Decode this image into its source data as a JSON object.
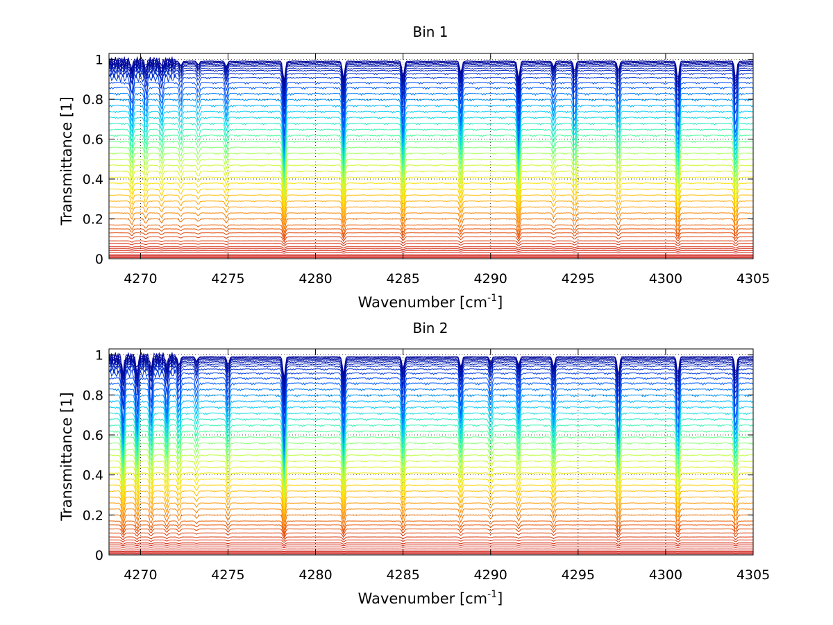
{
  "chart_data": [
    {
      "type": "line",
      "title": "Bin 1",
      "xlabel_main": "Wavenumber [cm",
      "xlabel_sup": "-1",
      "xlabel_end": "]",
      "ylabel": "Transmittance [1]",
      "xlim": [
        4268.2,
        4305
      ],
      "ylim": [
        0,
        1.03
      ],
      "xticks": [
        4270,
        4275,
        4280,
        4285,
        4290,
        4295,
        4300,
        4305
      ],
      "yticks": [
        0,
        0.2,
        0.4,
        0.6,
        0.8,
        1
      ],
      "xtick_labels": [
        "4270",
        "4275",
        "4280",
        "4285",
        "4290",
        "4295",
        "4300",
        "4305"
      ],
      "ytick_labels": [
        "0",
        "0.2",
        "0.4",
        "0.6",
        "0.8",
        "1"
      ],
      "grid": true,
      "series_count": 48,
      "series_baseline_levels": [
        0.005,
        0.01,
        0.015,
        0.02,
        0.03,
        0.04,
        0.05,
        0.06,
        0.075,
        0.09,
        0.11,
        0.13,
        0.15,
        0.17,
        0.2,
        0.23,
        0.26,
        0.29,
        0.32,
        0.35,
        0.38,
        0.41,
        0.44,
        0.47,
        0.5,
        0.53,
        0.56,
        0.59,
        0.62,
        0.65,
        0.68,
        0.71,
        0.74,
        0.77,
        0.8,
        0.83,
        0.86,
        0.885,
        0.91,
        0.93,
        0.945,
        0.955,
        0.965,
        0.972,
        0.978,
        0.983,
        0.988,
        0.992
      ],
      "absorption_lines_cm1": [
        4269.5,
        4270.3,
        4271.2,
        4272.3,
        4273.3,
        4274.9,
        4278.2,
        4281.6,
        4285.0,
        4288.3,
        4291.6,
        4293.6,
        4294.8,
        4297.3,
        4300.7,
        4304.0
      ],
      "absorption_depths": [
        0.15,
        0.12,
        0.1,
        0.08,
        0.06,
        0.1,
        0.35,
        0.3,
        0.28,
        0.2,
        0.32,
        0.1,
        0.18,
        0.16,
        0.32,
        0.3
      ],
      "colormap": [
        "#00008f",
        "#0050ff",
        "#00c8ff",
        "#40ff9f",
        "#bfff40",
        "#ffdf00",
        "#ff9000",
        "#e04000",
        "#cc1010"
      ]
    },
    {
      "type": "line",
      "title": "Bin 2",
      "xlabel_main": "Wavenumber [cm",
      "xlabel_sup": "-1",
      "xlabel_end": "]",
      "ylabel": "Transmittance [1]",
      "xlim": [
        4268.2,
        4305
      ],
      "ylim": [
        0,
        1.03
      ],
      "xticks": [
        4270,
        4275,
        4280,
        4285,
        4290,
        4295,
        4300,
        4305
      ],
      "yticks": [
        0,
        0.2,
        0.4,
        0.6,
        0.8,
        1
      ],
      "xtick_labels": [
        "4270",
        "4275",
        "4280",
        "4285",
        "4290",
        "4295",
        "4300",
        "4305"
      ],
      "ytick_labels": [
        "0",
        "0.2",
        "0.4",
        "0.6",
        "0.8",
        "1"
      ],
      "grid": true,
      "series_count": 48,
      "series_baseline_levels": [
        0.005,
        0.01,
        0.015,
        0.02,
        0.03,
        0.04,
        0.05,
        0.06,
        0.075,
        0.09,
        0.11,
        0.13,
        0.15,
        0.17,
        0.2,
        0.23,
        0.26,
        0.29,
        0.32,
        0.35,
        0.38,
        0.41,
        0.44,
        0.47,
        0.5,
        0.53,
        0.56,
        0.59,
        0.62,
        0.65,
        0.68,
        0.71,
        0.74,
        0.77,
        0.8,
        0.83,
        0.86,
        0.885,
        0.91,
        0.93,
        0.945,
        0.955,
        0.965,
        0.972,
        0.978,
        0.983,
        0.988,
        0.992
      ],
      "absorption_lines_cm1": [
        4269.0,
        4269.8,
        4270.6,
        4271.5,
        4272.2,
        4273.2,
        4275.0,
        4278.2,
        4281.6,
        4285.0,
        4288.3,
        4290.0,
        4291.6,
        4293.6,
        4297.3,
        4300.7,
        4304.0
      ],
      "absorption_depths": [
        0.3,
        0.25,
        0.22,
        0.18,
        0.15,
        0.08,
        0.15,
        0.38,
        0.3,
        0.22,
        0.18,
        0.1,
        0.15,
        0.18,
        0.32,
        0.3,
        0.28
      ],
      "colormap": [
        "#00008f",
        "#0050ff",
        "#00c8ff",
        "#40ff9f",
        "#bfff40",
        "#ffdf00",
        "#ff9000",
        "#e04000",
        "#cc1010"
      ]
    }
  ]
}
